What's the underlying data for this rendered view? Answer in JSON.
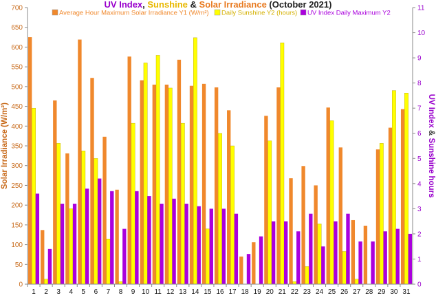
{
  "chart_data": {
    "type": "bar",
    "title_parts": [
      {
        "text": "UV Index",
        "color": "#9900cc"
      },
      {
        "text": ", ",
        "color": "#222222"
      },
      {
        "text": "Sunshine",
        "color": "#e8b800"
      },
      {
        "text": " & ",
        "color": "#222222"
      },
      {
        "text": "Solar Irradiance",
        "color": "#e87a20"
      },
      {
        "text": " (October 2021)",
        "color": "#222222"
      }
    ],
    "ylabel_left": "Solar Irradiance (W/m²)",
    "ylabel_right_parts": [
      {
        "text": "UV Index",
        "color": "#9900cc"
      },
      {
        "text": " & ",
        "color": "#444444"
      },
      {
        "text": "Sunshine hours",
        "color": "#9900cc"
      }
    ],
    "ylim_left": [
      0,
      700
    ],
    "ylim_right": [
      0,
      11
    ],
    "yticks_left": [
      0,
      50,
      100,
      150,
      200,
      250,
      300,
      350,
      400,
      450,
      500,
      550,
      600,
      650,
      700
    ],
    "yticks_right": [
      0,
      1,
      2,
      3,
      4,
      5,
      6,
      7,
      8,
      9,
      10,
      11
    ],
    "categories": [
      "1",
      "2",
      "3",
      "4",
      "5",
      "6",
      "7",
      "8",
      "9",
      "10",
      "11",
      "12",
      "13",
      "14",
      "15",
      "16",
      "17",
      "18",
      "19",
      "20",
      "21",
      "22",
      "23",
      "24",
      "25",
      "26",
      "27",
      "28",
      "29",
      "30",
      "31"
    ],
    "legend_position": "top",
    "grid": false,
    "series": [
      {
        "name": "Average Hour Maximum Solar Irradiance Y1 (W/m²)",
        "axis": "left",
        "color": "#f0882c",
        "values": [
          625,
          137,
          465,
          331,
          619,
          522,
          373,
          239,
          576,
          516,
          505,
          505,
          568,
          502,
          507,
          498,
          440,
          70,
          106,
          426,
          498,
          268,
          299,
          250,
          447,
          346,
          162,
          148,
          341,
          396,
          443
        ]
      },
      {
        "name": "Daily Sunshine Y2 (hours)",
        "axis": "right",
        "color": "#ffff00",
        "values": [
          7.0,
          0.2,
          5.6,
          3.0,
          5.3,
          5.0,
          1.8,
          0.1,
          6.4,
          8.8,
          9.1,
          7.8,
          6.4,
          9.8,
          2.2,
          6.0,
          5.5,
          0.0,
          0.0,
          5.7,
          9.6,
          0.1,
          0.7,
          2.4,
          6.5,
          1.3,
          0.2,
          0.0,
          5.6,
          7.7,
          7.6
        ]
      },
      {
        "name": "UV Index Daily Maximum Y2",
        "axis": "right",
        "color": "#aa00dd",
        "values": [
          3.6,
          1.4,
          3.2,
          3.2,
          3.8,
          4.2,
          3.7,
          2.2,
          3.7,
          3.5,
          3.2,
          3.4,
          3.2,
          3.1,
          3.0,
          3.0,
          2.8,
          1.2,
          1.9,
          2.5,
          2.5,
          2.1,
          2.8,
          1.5,
          2.5,
          2.8,
          1.7,
          1.7,
          2.1,
          2.2,
          2.0
        ]
      }
    ]
  }
}
